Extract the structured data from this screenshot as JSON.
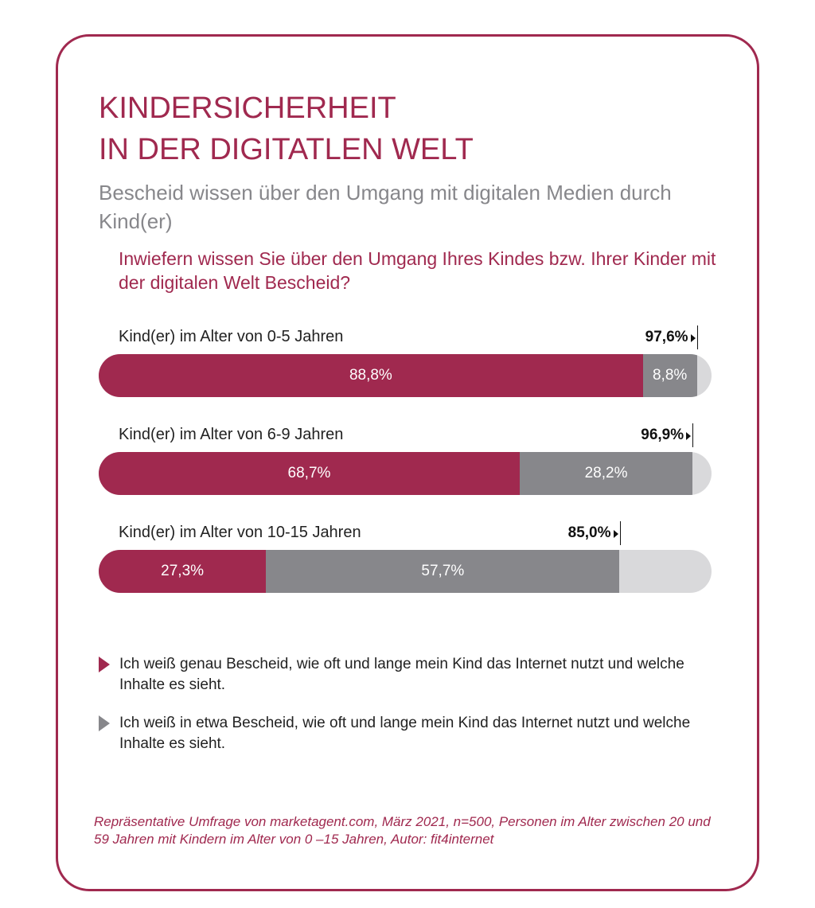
{
  "chart_data": {
    "type": "bar",
    "stacked": true,
    "orientation": "horizontal",
    "title": "KINDERSICHERHEIT IN DER DIGITATLEN WELT",
    "title_lines": [
      "KINDERSICHERHEIT",
      "IN DER DIGITATLEN WELT"
    ],
    "subtitle": "Bescheid wissen über den Umgang mit digitalen Medien durch Kind(er)",
    "question": "Inwiefern wissen Sie über den Umgang Ihres Kindes bzw. Ihrer Kinder mit der digitalen Welt Bescheid?",
    "categories": [
      "Kind(er) im Alter von 0-5 Jahren",
      "Kind(er) im Alter von 6-9 Jahren",
      "Kind(er) im Alter von 10-15 Jahren"
    ],
    "series": [
      {
        "name": "Ich weiß genau Bescheid, wie oft und lange mein Kind das Internet nutzt und welche Inhalte es sieht.",
        "color": "#a0294f",
        "values": [
          88.8,
          68.7,
          27.3
        ],
        "labels": [
          "88,8%",
          "68,7%",
          "27,3%"
        ]
      },
      {
        "name": "Ich weiß in etwa Bescheid, wie oft und lange mein Kind das Internet nutzt und welche Inhalte es sieht.",
        "color": "#87878b",
        "values": [
          8.8,
          28.2,
          57.7
        ],
        "labels": [
          "8,8%",
          "28,2%",
          "57,7%"
        ]
      }
    ],
    "totals": [
      97.6,
      96.9,
      85.0
    ],
    "total_labels": [
      "97,6%",
      "96,9%",
      "85,0%"
    ],
    "xlim": [
      0,
      100
    ],
    "remainder_color": "#d9d9db",
    "source": "Repräsentative Umfrage von marketagent.com, März 2021, n=500, Personen im Alter zwischen 20 und 59 Jahren mit Kindern im Alter von 0 –15 Jahren, Autor: fit4internet"
  }
}
